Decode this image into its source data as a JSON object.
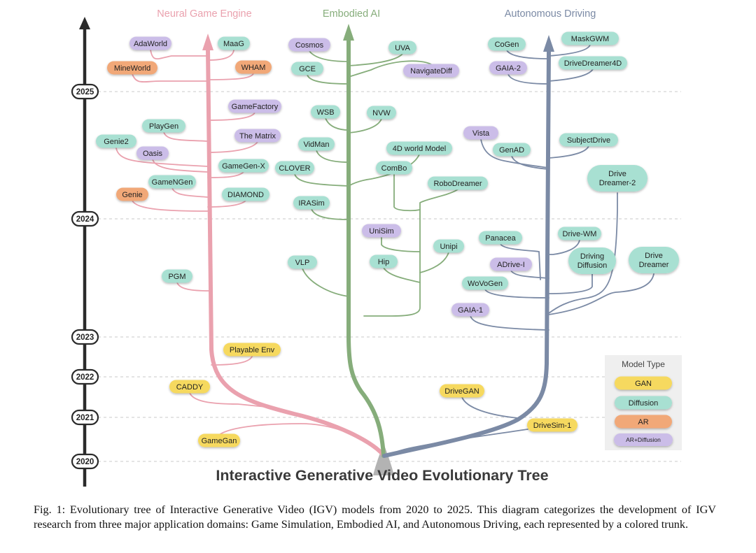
{
  "title": "Interactive Generative Video Evolutionary Tree",
  "branches": {
    "game": {
      "label": "Neural Game Engine",
      "color": "#eaa1ae"
    },
    "embodied": {
      "label": "Embodied AI",
      "color": "#86ad7b"
    },
    "driving": {
      "label": "Autonomous Driving",
      "color": "#7b8aa5"
    }
  },
  "timeline": {
    "years": [
      "2025",
      "2024",
      "2023",
      "2022",
      "2021",
      "2020"
    ],
    "axis_color": "#2b2b2b"
  },
  "node_colors": {
    "gan": "#f6d95e",
    "diffusion": "#a8e0d2",
    "ar": "#f1a878",
    "ar_diffusion": "#cbbde8"
  },
  "legend": {
    "title": "Model Type",
    "items": [
      {
        "label": "GAN",
        "type": "gan"
      },
      {
        "label": "Diffusion",
        "type": "diffusion"
      },
      {
        "label": "AR",
        "type": "ar"
      },
      {
        "label": "AR+Diffusion",
        "type": "ar_diffusion"
      }
    ]
  },
  "nodes": [
    {
      "id": "adaworld",
      "label": "AdaWorld",
      "type": "ar_diffusion",
      "branch": "game",
      "year": "2025"
    },
    {
      "id": "maag",
      "label": "MaaG",
      "type": "diffusion",
      "branch": "game",
      "year": "2025"
    },
    {
      "id": "mineworld",
      "label": "MineWorld",
      "type": "ar",
      "branch": "game",
      "year": "2025"
    },
    {
      "id": "wham",
      "label": "WHAM",
      "type": "ar",
      "branch": "game",
      "year": "2025"
    },
    {
      "id": "gamefactory",
      "label": "GameFactory",
      "type": "ar_diffusion",
      "branch": "game",
      "year": "2024"
    },
    {
      "id": "playgen",
      "label": "PlayGen",
      "type": "diffusion",
      "branch": "game",
      "year": "2024"
    },
    {
      "id": "thematrix",
      "label": "The Matrix",
      "type": "ar_diffusion",
      "branch": "game",
      "year": "2024"
    },
    {
      "id": "genie2",
      "label": "Genie2",
      "type": "diffusion",
      "branch": "game",
      "year": "2024"
    },
    {
      "id": "oasis",
      "label": "Oasis",
      "type": "ar_diffusion",
      "branch": "game",
      "year": "2024"
    },
    {
      "id": "gamegenx",
      "label": "GameGen-X",
      "type": "diffusion",
      "branch": "game",
      "year": "2024"
    },
    {
      "id": "gamengen",
      "label": "GameNGen",
      "type": "diffusion",
      "branch": "game",
      "year": "2024"
    },
    {
      "id": "genie",
      "label": "Genie",
      "type": "ar",
      "branch": "game",
      "year": "2024"
    },
    {
      "id": "diamond",
      "label": "DIAMOND",
      "type": "diffusion",
      "branch": "game",
      "year": "2024"
    },
    {
      "id": "pgm",
      "label": "PGM",
      "type": "diffusion",
      "branch": "game",
      "year": "2023"
    },
    {
      "id": "playableenv",
      "label": "Playable Env",
      "type": "gan",
      "branch": "game",
      "year": "2022"
    },
    {
      "id": "caddy",
      "label": "CADDY",
      "type": "gan",
      "branch": "game",
      "year": "2021"
    },
    {
      "id": "gamegan",
      "label": "GameGan",
      "type": "gan",
      "branch": "game",
      "year": "2020"
    },
    {
      "id": "cosmos",
      "label": "Cosmos",
      "type": "ar_diffusion",
      "branch": "embodied",
      "year": "2025"
    },
    {
      "id": "uva",
      "label": "UVA",
      "type": "diffusion",
      "branch": "embodied",
      "year": "2025"
    },
    {
      "id": "gce",
      "label": "GCE",
      "type": "diffusion",
      "branch": "embodied",
      "year": "2025"
    },
    {
      "id": "navigatediff",
      "label": "NavigateDiff",
      "type": "ar_diffusion",
      "branch": "embodied",
      "year": "2025"
    },
    {
      "id": "wsb",
      "label": "WSB",
      "type": "diffusion",
      "branch": "embodied",
      "year": "2024"
    },
    {
      "id": "nvw",
      "label": "NVW",
      "type": "diffusion",
      "branch": "embodied",
      "year": "2024"
    },
    {
      "id": "vidman",
      "label": "VidMan",
      "type": "diffusion",
      "branch": "embodied",
      "year": "2024"
    },
    {
      "id": "4dworld",
      "label": "4D world Model",
      "type": "diffusion",
      "branch": "embodied",
      "year": "2024"
    },
    {
      "id": "clover",
      "label": "CLOVER",
      "type": "diffusion",
      "branch": "embodied",
      "year": "2024"
    },
    {
      "id": "combo",
      "label": "ComBo",
      "type": "diffusion",
      "branch": "embodied",
      "year": "2024"
    },
    {
      "id": "robodreamer",
      "label": "RoboDreamer",
      "type": "diffusion",
      "branch": "embodied",
      "year": "2024"
    },
    {
      "id": "irasim",
      "label": "IRASim",
      "type": "diffusion",
      "branch": "embodied",
      "year": "2024"
    },
    {
      "id": "unisim",
      "label": "UniSim",
      "type": "ar_diffusion",
      "branch": "embodied",
      "year": "2023"
    },
    {
      "id": "unipi",
      "label": "Unipi",
      "type": "diffusion",
      "branch": "embodied",
      "year": "2023"
    },
    {
      "id": "vlp",
      "label": "VLP",
      "type": "diffusion",
      "branch": "embodied",
      "year": "2023"
    },
    {
      "id": "hip",
      "label": "Hip",
      "type": "diffusion",
      "branch": "embodied",
      "year": "2023"
    },
    {
      "id": "cogen",
      "label": "CoGen",
      "type": "diffusion",
      "branch": "driving",
      "year": "2025"
    },
    {
      "id": "maskgwm",
      "label": "MaskGWM",
      "type": "diffusion",
      "branch": "driving",
      "year": "2025"
    },
    {
      "id": "gaia2",
      "label": "GAIA-2",
      "type": "ar_diffusion",
      "branch": "driving",
      "year": "2025"
    },
    {
      "id": "drivedreamer4d",
      "label": "DriveDreamer4D",
      "type": "diffusion",
      "branch": "driving",
      "year": "2025"
    },
    {
      "id": "vista",
      "label": "Vista",
      "type": "ar_diffusion",
      "branch": "driving",
      "year": "2024"
    },
    {
      "id": "subjectdrive",
      "label": "SubjectDrive",
      "type": "diffusion",
      "branch": "driving",
      "year": "2024"
    },
    {
      "id": "genad",
      "label": "GenAD",
      "type": "diffusion",
      "branch": "driving",
      "year": "2024"
    },
    {
      "id": "drivedreamer2",
      "label": "Drive Dreamer-2",
      "type": "diffusion",
      "branch": "driving",
      "year": "2024"
    },
    {
      "id": "panacea",
      "label": "Panacea",
      "type": "diffusion",
      "branch": "driving",
      "year": "2023"
    },
    {
      "id": "drivewm",
      "label": "Drive-WM",
      "type": "diffusion",
      "branch": "driving",
      "year": "2023"
    },
    {
      "id": "drivingdiffusion",
      "label": "Driving Diffusion",
      "type": "diffusion",
      "branch": "driving",
      "year": "2023"
    },
    {
      "id": "drivedreamer",
      "label": "Drive Dreamer",
      "type": "diffusion",
      "branch": "driving",
      "year": "2023"
    },
    {
      "id": "adrivei",
      "label": "ADrive-I",
      "type": "ar_diffusion",
      "branch": "driving",
      "year": "2023"
    },
    {
      "id": "wovogen",
      "label": "WoVoGen",
      "type": "diffusion",
      "branch": "driving",
      "year": "2023"
    },
    {
      "id": "gaia1",
      "label": "GAIA-1",
      "type": "ar_diffusion",
      "branch": "driving",
      "year": "2023"
    },
    {
      "id": "drivegan",
      "label": "DriveGAN",
      "type": "gan",
      "branch": "driving",
      "year": "2021"
    },
    {
      "id": "drivesim1",
      "label": "DriveSim-1",
      "type": "gan",
      "branch": "driving",
      "year": "2020"
    }
  ],
  "caption": "Fig. 1: Evolutionary tree of Interactive Generative Video (IGV) models from 2020 to 2025. This diagram categorizes the development of IGV research from three major application domains: Game Simulation, Embodied AI, and Autonomous Driving, each represented by a colored trunk."
}
